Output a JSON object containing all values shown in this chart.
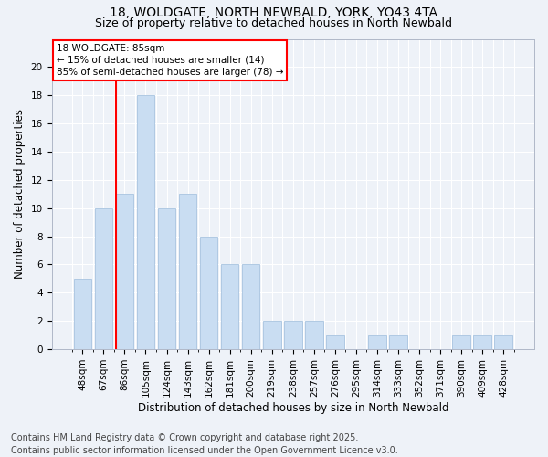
{
  "title1": "18, WOLDGATE, NORTH NEWBALD, YORK, YO43 4TA",
  "title2": "Size of property relative to detached houses in North Newbald",
  "xlabel": "Distribution of detached houses by size in North Newbald",
  "ylabel": "Number of detached properties",
  "categories": [
    "48sqm",
    "67sqm",
    "86sqm",
    "105sqm",
    "124sqm",
    "143sqm",
    "162sqm",
    "181sqm",
    "200sqm",
    "219sqm",
    "238sqm",
    "257sqm",
    "276sqm",
    "295sqm",
    "314sqm",
    "333sqm",
    "352sqm",
    "371sqm",
    "390sqm",
    "409sqm",
    "428sqm"
  ],
  "values": [
    5,
    10,
    11,
    18,
    10,
    11,
    8,
    6,
    6,
    2,
    2,
    2,
    1,
    0,
    1,
    1,
    0,
    0,
    1,
    1,
    1
  ],
  "bar_color": "#c9ddf2",
  "bar_edge_color": "#a8c4e0",
  "annotation_line1": "18 WOLDGATE: 85sqm",
  "annotation_line2": "← 15% of detached houses are smaller (14)",
  "annotation_line3": "85% of semi-detached houses are larger (78) →",
  "annotation_box_color": "white",
  "annotation_box_edge_color": "red",
  "highlight_line_color": "red",
  "highlight_line_index": 2,
  "ylim": [
    0,
    22
  ],
  "yticks": [
    0,
    2,
    4,
    6,
    8,
    10,
    12,
    14,
    16,
    18,
    20
  ],
  "footer": "Contains HM Land Registry data © Crown copyright and database right 2025.\nContains public sector information licensed under the Open Government Licence v3.0.",
  "background_color": "#eef2f8",
  "grid_color": "white",
  "title_fontsize": 10,
  "subtitle_fontsize": 9,
  "axis_label_fontsize": 8.5,
  "tick_fontsize": 7.5,
  "annotation_fontsize": 7.5,
  "footer_fontsize": 7
}
